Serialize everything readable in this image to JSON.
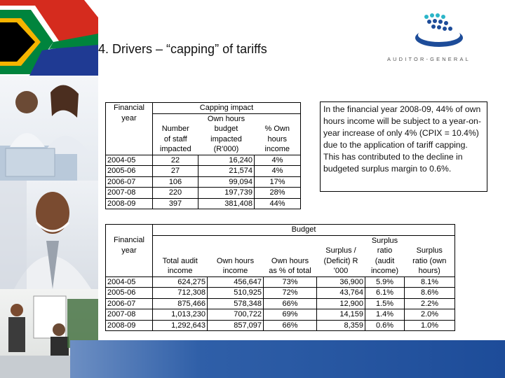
{
  "slide": {
    "title": "4. Drivers – “capping” of tariffs"
  },
  "logo": {
    "text": "AUDITOR-GENERAL"
  },
  "capping_table": {
    "year_header": [
      "Financial",
      "year"
    ],
    "group_header": "Capping impact",
    "col_headers": [
      [
        "",
        "Number",
        "of staff",
        "impacted"
      ],
      [
        "Own hours",
        "budget",
        "impacted",
        "(R'000)"
      ],
      [
        "% Own",
        "hours",
        "income"
      ]
    ],
    "rows": [
      {
        "year": "2004-05",
        "staff": "22",
        "hours": "16,240",
        "pct": "4%"
      },
      {
        "year": "2005-06",
        "staff": "27",
        "hours": "21,574",
        "pct": "4%"
      },
      {
        "year": "2006-07",
        "staff": "106",
        "hours": "99,094",
        "pct": "17%"
      },
      {
        "year": "2007-08",
        "staff": "220",
        "hours": "197,739",
        "pct": "28%"
      },
      {
        "year": "2008-09",
        "staff": "397",
        "hours": "381,408",
        "pct": "44%"
      }
    ]
  },
  "callout": {
    "text": "In the financial year 2008-09, 44% of own hours income will be subject to a year-on-year increase of only 4% (CPIX = 10.4%) due to the application of tariff capping. This has contributed to the decline in budgeted surplus margin to 0.6%."
  },
  "budget_table": {
    "year_header": [
      "Financial",
      "year"
    ],
    "group_header": "Budget",
    "col_headers": [
      [
        "Total audit",
        "income"
      ],
      [
        "Own hours",
        "income"
      ],
      [
        "Own hours",
        "as % of total"
      ],
      [
        "Surplus /",
        "(Deficit) R",
        "'000"
      ],
      [
        "Surplus",
        "ratio",
        "(audit",
        "income)"
      ],
      [
        "Surplus",
        "ratio (own",
        "hours)"
      ]
    ],
    "rows": [
      {
        "year": "2004-05",
        "total": "624,275",
        "own": "456,647",
        "pct": "73%",
        "surplus": "36,900",
        "ratio_audit": "5.9%",
        "ratio_own": "8.1%"
      },
      {
        "year": "2005-06",
        "total": "712,308",
        "own": "510,925",
        "pct": "72%",
        "surplus": "43,764",
        "ratio_audit": "6.1%",
        "ratio_own": "8.6%"
      },
      {
        "year": "2006-07",
        "total": "875,466",
        "own": "578,348",
        "pct": "66%",
        "surplus": "12,900",
        "ratio_audit": "1.5%",
        "ratio_own": "2.2%"
      },
      {
        "year": "2007-08",
        "total": "1,013,230",
        "own": "700,722",
        "pct": "69%",
        "surplus": "14,159",
        "ratio_audit": "1.4%",
        "ratio_own": "2.0%"
      },
      {
        "year": "2008-09",
        "total": "1,292,643",
        "own": "857,097",
        "pct": "66%",
        "surplus": "8,359",
        "ratio_audit": "0.6%",
        "ratio_own": "1.0%"
      }
    ]
  },
  "colors": {
    "band": "#1d4c99",
    "flag_green": "#00843d",
    "flag_gold": "#f6b400",
    "flag_red": "#d52b1e",
    "flag_blue": "#1f3a93"
  },
  "icons": [
    "south-africa-flag-icon",
    "auditor-general-logo-icon"
  ]
}
